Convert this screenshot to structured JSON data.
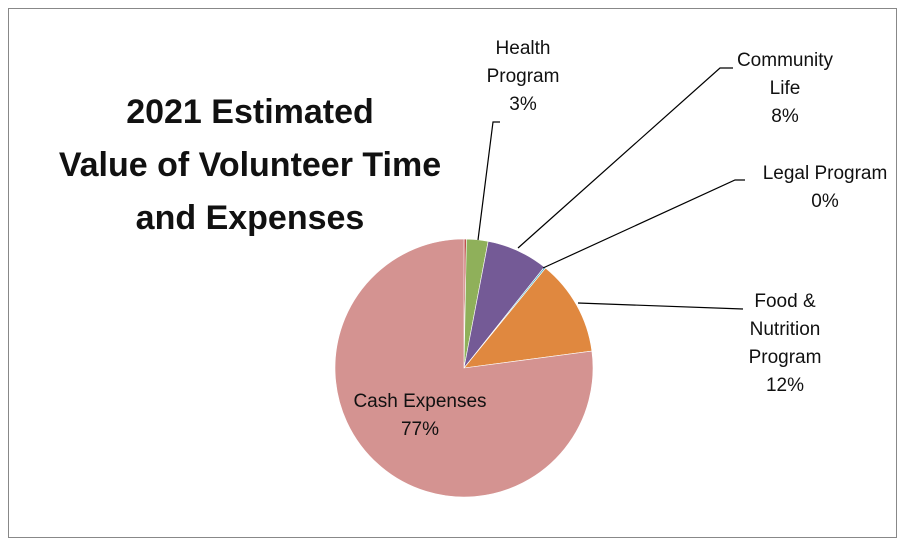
{
  "chart_data": {
    "type": "pie",
    "title": "2021 Estimated\nValue of Volunteer Time\nand Expenses",
    "categories": [
      null,
      "Health Program",
      "Community Life",
      "Legal Program",
      "Food & Nutrition Program",
      "Cash Expenses"
    ],
    "values": [
      0.3,
      2.7,
      7.7,
      0.2,
      12.0,
      77.1
    ],
    "value_labels": [
      null,
      "3%",
      "8%",
      "0%",
      "12%",
      "77%"
    ],
    "colors": [
      "#c0504d",
      "#8fb05a",
      "#745a96",
      "#4bacc6",
      "#e0883f",
      "#d49391"
    ]
  }
}
